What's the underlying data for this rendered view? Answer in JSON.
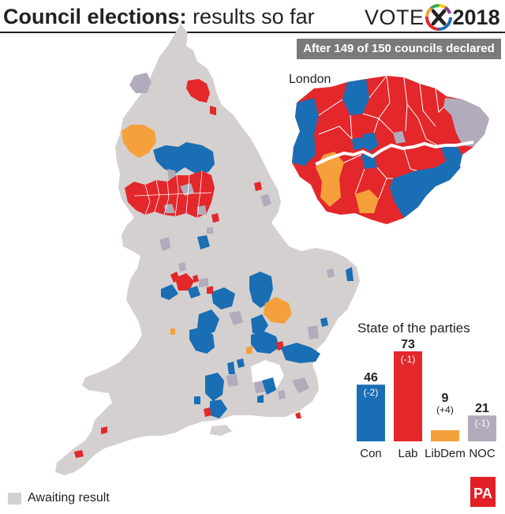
{
  "header": {
    "title_bold": "Council elections:",
    "title_light": "results so far",
    "logo_text_left": "VOTE",
    "logo_text_right": "2018",
    "badge": "After 149 of 150 councils declared"
  },
  "map": {
    "inset_label": "London",
    "legend_label": "Awaiting result"
  },
  "colors": {
    "Con": "#1a6eb4",
    "Lab": "#e3272b",
    "LibDem": "#f5a03a",
    "NOC": "#b2abbb",
    "Awaiting": "#d4d0cf"
  },
  "chart_data": {
    "type": "bar",
    "title": "State of the parties",
    "categories": [
      "Con",
      "Lab",
      "LibDem",
      "NOC"
    ],
    "values": [
      46,
      73,
      9,
      21
    ],
    "changes": [
      "(-2)",
      "(-1)",
      "(+4)",
      "(-1)"
    ],
    "colors": [
      "#1a6eb4",
      "#e3272b",
      "#f5a03a",
      "#b2abbb"
    ],
    "ylim": [
      0,
      73
    ]
  },
  "footer": {
    "logo": "PA"
  }
}
